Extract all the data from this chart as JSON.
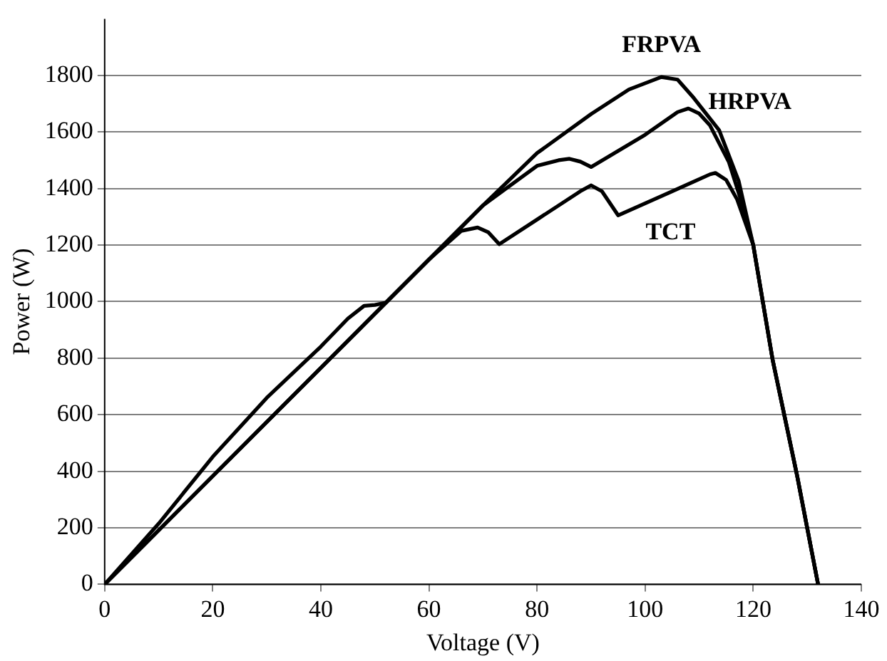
{
  "chart_data": {
    "type": "line",
    "xlabel": "Voltage (V)",
    "ylabel": "Power (W)",
    "xlim": [
      0,
      140
    ],
    "xticks": [
      0,
      20,
      40,
      60,
      80,
      100,
      120,
      140
    ],
    "ylim": [
      0,
      2000
    ],
    "yticks": [
      0,
      200,
      400,
      600,
      800,
      1000,
      1200,
      1400,
      1600,
      1800
    ],
    "grid": "y",
    "legend": false,
    "marker": "none",
    "line_style": "solid",
    "series": [
      {
        "name": "FRPVA",
        "color": "#000000",
        "x": [
          0,
          70,
          80,
          90,
          97,
          103,
          106,
          109,
          113.7,
          117.3,
          120,
          123.6,
          128.1,
          132
        ],
        "values": [
          0,
          1340,
          1525,
          1663,
          1750,
          1794,
          1785,
          1720,
          1606,
          1427,
          1200,
          793,
          386,
          0
        ]
      },
      {
        "name": "HRPVA",
        "color": "#000000",
        "x": [
          0,
          70,
          80,
          84,
          86,
          88,
          90,
          100,
          106,
          108,
          110,
          112,
          115.5,
          118.2,
          120,
          123.6,
          128.1,
          132
        ],
        "values": [
          0,
          1340,
          1480,
          1500,
          1505,
          1495,
          1476,
          1590,
          1670,
          1683,
          1665,
          1623,
          1493,
          1330,
          1200,
          793,
          386,
          0
        ]
      },
      {
        "name": "TCT",
        "color": "#000000",
        "x": [
          0,
          10,
          20,
          30,
          40,
          45,
          48,
          50,
          52,
          60,
          66,
          69,
          71,
          73,
          80,
          88,
          90,
          92,
          95,
          105,
          112,
          113,
          115,
          117,
          120,
          123.6,
          128.1,
          132
        ],
        "values": [
          0,
          215,
          451,
          660,
          841,
          940,
          985,
          988,
          996,
          1149,
          1250,
          1262,
          1245,
          1203,
          1290,
          1390,
          1411,
          1390,
          1305,
          1390,
          1450,
          1455,
          1430,
          1362,
          1200,
          793,
          386,
          0
        ]
      }
    ]
  }
}
